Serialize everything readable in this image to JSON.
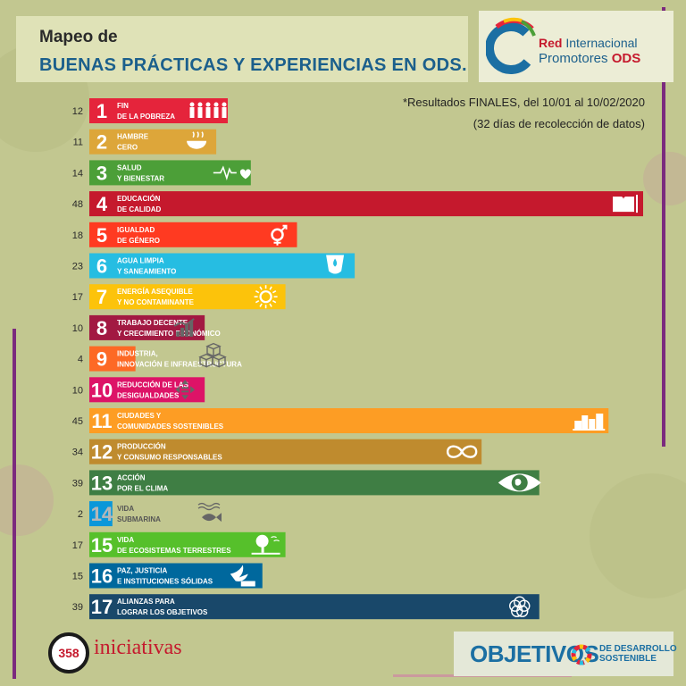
{
  "header": {
    "title_line1": "Mapeo de",
    "title_line2": "BUENAS PRÁCTICAS Y EXPERIENCIAS EN ODS."
  },
  "logo": {
    "line1_a": "Red",
    "line1_b": " Internacional",
    "line2_a": "Promotores ",
    "line2_b": "ODS"
  },
  "note": {
    "line1": "*Resultados FINALES, del 10/01 al 10/02/2020",
    "line2": "(32 días de recolección de datos)"
  },
  "total": {
    "value": "358",
    "label": "iniciativas"
  },
  "footer_logo": {
    "main": "OBJETIVOS",
    "sub_line1": "DE DESARROLLO",
    "sub_line2": "SOSTENIBLE"
  },
  "chart_data": {
    "type": "bar",
    "orientation": "horizontal",
    "xlim": [
      0,
      48
    ],
    "categories": [
      {
        "num": "1",
        "line1": "FIN",
        "line2": "DE LA POBREZA",
        "color": "#e5243b",
        "icon": "people-icon"
      },
      {
        "num": "2",
        "line1": "HAMBRE",
        "line2": "CERO",
        "color": "#dda63a",
        "icon": "bowl-icon"
      },
      {
        "num": "3",
        "line1": "SALUD",
        "line2": "Y BIENESTAR",
        "color": "#4c9f38",
        "icon": "heartbeat-icon"
      },
      {
        "num": "4",
        "line1": "EDUCACIÓN",
        "line2": "DE CALIDAD",
        "color": "#c5192d",
        "icon": "book-icon"
      },
      {
        "num": "5",
        "line1": "IGUALDAD",
        "line2": "DE GÉNERO",
        "color": "#ff3a21",
        "icon": "gender-icon"
      },
      {
        "num": "6",
        "line1": "AGUA LIMPIA",
        "line2": "Y SANEAMIENTO",
        "color": "#26bde2",
        "icon": "water-icon"
      },
      {
        "num": "7",
        "line1": "ENERGÍA ASEQUIBLE",
        "line2": "Y NO CONTAMINANTE",
        "color": "#fcc30b",
        "icon": "sun-icon"
      },
      {
        "num": "8",
        "line1": "TRABAJO DECENTE",
        "line2": "Y CRECIMIENTO ECONÓMICO",
        "color": "#a21942",
        "icon": "growth-chart-icon"
      },
      {
        "num": "9",
        "line1": "INDUSTRIA,",
        "line2": "INNOVACIÓN E INFRAESTRUCTURA",
        "color": "#fd6925",
        "icon": "cubes-icon"
      },
      {
        "num": "10",
        "line1": "REDUCCIÓN DE LAS",
        "line2": "DESIGUALDADES",
        "color": "#dd1367",
        "icon": "equality-icon"
      },
      {
        "num": "11",
        "line1": "CIUDADES Y",
        "line2": "COMUNIDADES SOSTENIBLES",
        "color": "#fd9d24",
        "icon": "city-icon"
      },
      {
        "num": "12",
        "line1": "PRODUCCIÓN",
        "line2": "Y CONSUMO RESPONSABLES",
        "color": "#bf8b2e",
        "icon": "infinity-icon"
      },
      {
        "num": "13",
        "line1": "ACCIÓN",
        "line2": "POR EL CLIMA",
        "color": "#3f7e44",
        "icon": "eye-globe-icon"
      },
      {
        "num": "14",
        "line1": "VIDA",
        "line2": "SUBMARINA",
        "color": "#0a97d9",
        "icon": "fish-icon"
      },
      {
        "num": "15",
        "line1": "VIDA",
        "line2": "DE ECOSISTEMAS TERRESTRES",
        "color": "#56c02b",
        "icon": "tree-icon"
      },
      {
        "num": "16",
        "line1": "PAZ, JUSTICIA",
        "line2": "E INSTITUCIONES SÓLIDAS",
        "color": "#00689d",
        "icon": "dove-icon"
      },
      {
        "num": "17",
        "line1": "ALIANZAS PARA",
        "line2": "LOGRAR LOS OBJETIVOS",
        "color": "#19486a",
        "icon": "rings-icon"
      }
    ],
    "values": [
      12,
      11,
      14,
      48,
      18,
      23,
      17,
      10,
      4,
      10,
      45,
      34,
      39,
      2,
      17,
      15,
      39
    ]
  }
}
